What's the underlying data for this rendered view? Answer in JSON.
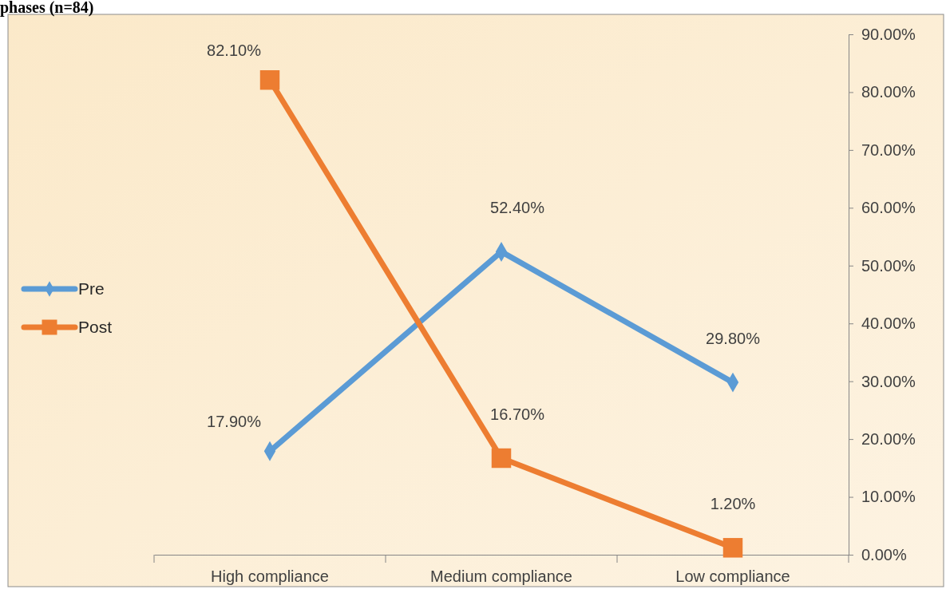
{
  "chart_data": {
    "type": "line",
    "title": "phases (n=84)",
    "categories": [
      "High compliance",
      "Medium compliance",
      "Low compliance"
    ],
    "series": [
      {
        "name": "Pre",
        "color": "#5b9bd5",
        "marker": "diamond",
        "values": [
          17.9,
          52.4,
          29.8
        ],
        "value_labels": [
          "17.90%",
          "52.40%",
          "29.80%"
        ]
      },
      {
        "name": "Post",
        "color": "#ed7d31",
        "marker": "square",
        "values": [
          82.1,
          16.7,
          1.2
        ],
        "value_labels": [
          "82.10%",
          "16.70%",
          "1.20%"
        ]
      }
    ],
    "ylim": [
      0,
      90
    ],
    "yticks": [
      {
        "value": 0,
        "label": "0.00%"
      },
      {
        "value": 10,
        "label": "10.00%"
      },
      {
        "value": 20,
        "label": "20.00%"
      },
      {
        "value": 30,
        "label": "30.00%"
      },
      {
        "value": 40,
        "label": "40.00%"
      },
      {
        "value": 50,
        "label": "50.00%"
      },
      {
        "value": 60,
        "label": "60.00%"
      },
      {
        "value": 70,
        "label": "70.00%"
      },
      {
        "value": 80,
        "label": "80.00%"
      },
      {
        "value": 90,
        "label": "90.00%"
      }
    ],
    "legend": "left",
    "grid": false
  }
}
